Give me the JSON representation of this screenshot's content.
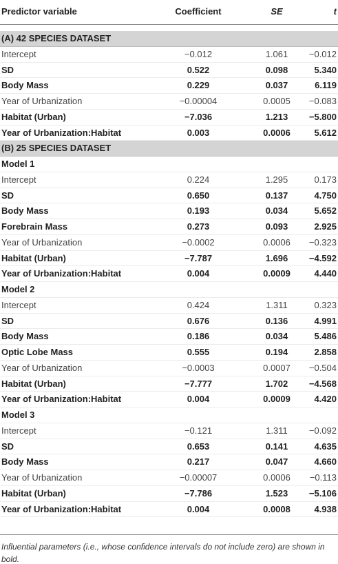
{
  "table": {
    "header": {
      "cells": [
        "Predictor variable",
        "Coefficient",
        "SE",
        "t"
      ],
      "italic": [
        false,
        false,
        true,
        true
      ]
    },
    "rows": [
      {
        "cells": [
          "(A) 42 SPECIES DATASET"
        ],
        "bold": true,
        "shaded": true
      },
      {
        "cells": [
          "Intercept",
          "−0.012",
          "1.061",
          "−0.012"
        ],
        "bold": false
      },
      {
        "cells": [
          "SD",
          "0.522",
          "0.098",
          "5.340"
        ],
        "bold": true
      },
      {
        "cells": [
          "Body Mass",
          "0.229",
          "0.037",
          "6.119"
        ],
        "bold": true
      },
      {
        "cells": [
          "Year of Urbanization",
          "−0.00004",
          "0.0005",
          "−0.083"
        ],
        "bold": false
      },
      {
        "cells": [
          "Habitat (Urban)",
          "−7.036",
          "1.213",
          "−5.800"
        ],
        "bold": true
      },
      {
        "cells": [
          "Year of Urbanization:Habitat",
          "0.003",
          "0.0006",
          "5.612"
        ],
        "bold": true
      },
      {
        "cells": [
          "(B) 25 SPECIES DATASET"
        ],
        "bold": true,
        "shaded": true
      },
      {
        "cells": [
          "Model 1"
        ],
        "bold": true
      },
      {
        "cells": [
          "Intercept",
          "0.224",
          "1.295",
          "0.173"
        ],
        "bold": false
      },
      {
        "cells": [
          "SD",
          "0.650",
          "0.137",
          "4.750"
        ],
        "bold": true
      },
      {
        "cells": [
          "Body Mass",
          "0.193",
          "0.034",
          "5.652"
        ],
        "bold": true
      },
      {
        "cells": [
          "Forebrain Mass",
          "0.273",
          "0.093",
          "2.925"
        ],
        "bold": true
      },
      {
        "cells": [
          "Year of Urbanization",
          "−0.0002",
          "0.0006",
          "−0.323"
        ],
        "bold": false
      },
      {
        "cells": [
          "Habitat (Urban)",
          "−7.787",
          "1.696",
          "−4.592"
        ],
        "bold": true
      },
      {
        "cells": [
          "Year of Urbanization:Habitat",
          "0.004",
          "0.0009",
          "4.440"
        ],
        "bold": true
      },
      {
        "cells": [
          "Model 2"
        ],
        "bold": true
      },
      {
        "cells": [
          "Intercept",
          "0.424",
          "1.311",
          "0.323"
        ],
        "bold": false
      },
      {
        "cells": [
          "SD",
          "0.676",
          "0.136",
          "4.991"
        ],
        "bold": true
      },
      {
        "cells": [
          "Body Mass",
          "0.186",
          "0.034",
          "5.486"
        ],
        "bold": true
      },
      {
        "cells": [
          "Optic Lobe Mass",
          "0.555",
          "0.194",
          "2.858"
        ],
        "bold": true
      },
      {
        "cells": [
          "Year of Urbanization",
          "−0.0003",
          "0.0007",
          "−0.504"
        ],
        "bold": false
      },
      {
        "cells": [
          "Habitat (Urban)",
          "−7.777",
          "1.702",
          "−4.568"
        ],
        "bold": true
      },
      {
        "cells": [
          "Year of Urbanization:Habitat",
          "0.004",
          "0.0009",
          "4.420"
        ],
        "bold": true
      },
      {
        "cells": [
          "Model 3"
        ],
        "bold": true
      },
      {
        "cells": [
          "Intercept",
          "−0.121",
          "1.311",
          "−0.092"
        ],
        "bold": false
      },
      {
        "cells": [
          "SD",
          "0.653",
          "0.141",
          "4.635"
        ],
        "bold": true
      },
      {
        "cells": [
          "Body Mass",
          "0.217",
          "0.047",
          "4.660"
        ],
        "bold": true
      },
      {
        "cells": [
          "Year of Urbanization",
          "−0.00007",
          "0.0006",
          "−0.113"
        ],
        "bold": false
      },
      {
        "cells": [
          "Habitat (Urban)",
          "−7.786",
          "1.523",
          "−5.106"
        ],
        "bold": true
      },
      {
        "cells": [
          "Year of Urbanization:Habitat",
          "0.004",
          "0.0008",
          "4.938"
        ],
        "bold": true
      }
    ]
  },
  "footnote": "Influential parameters (i.e., whose confidence intervals do not include zero) are shown in bold."
}
